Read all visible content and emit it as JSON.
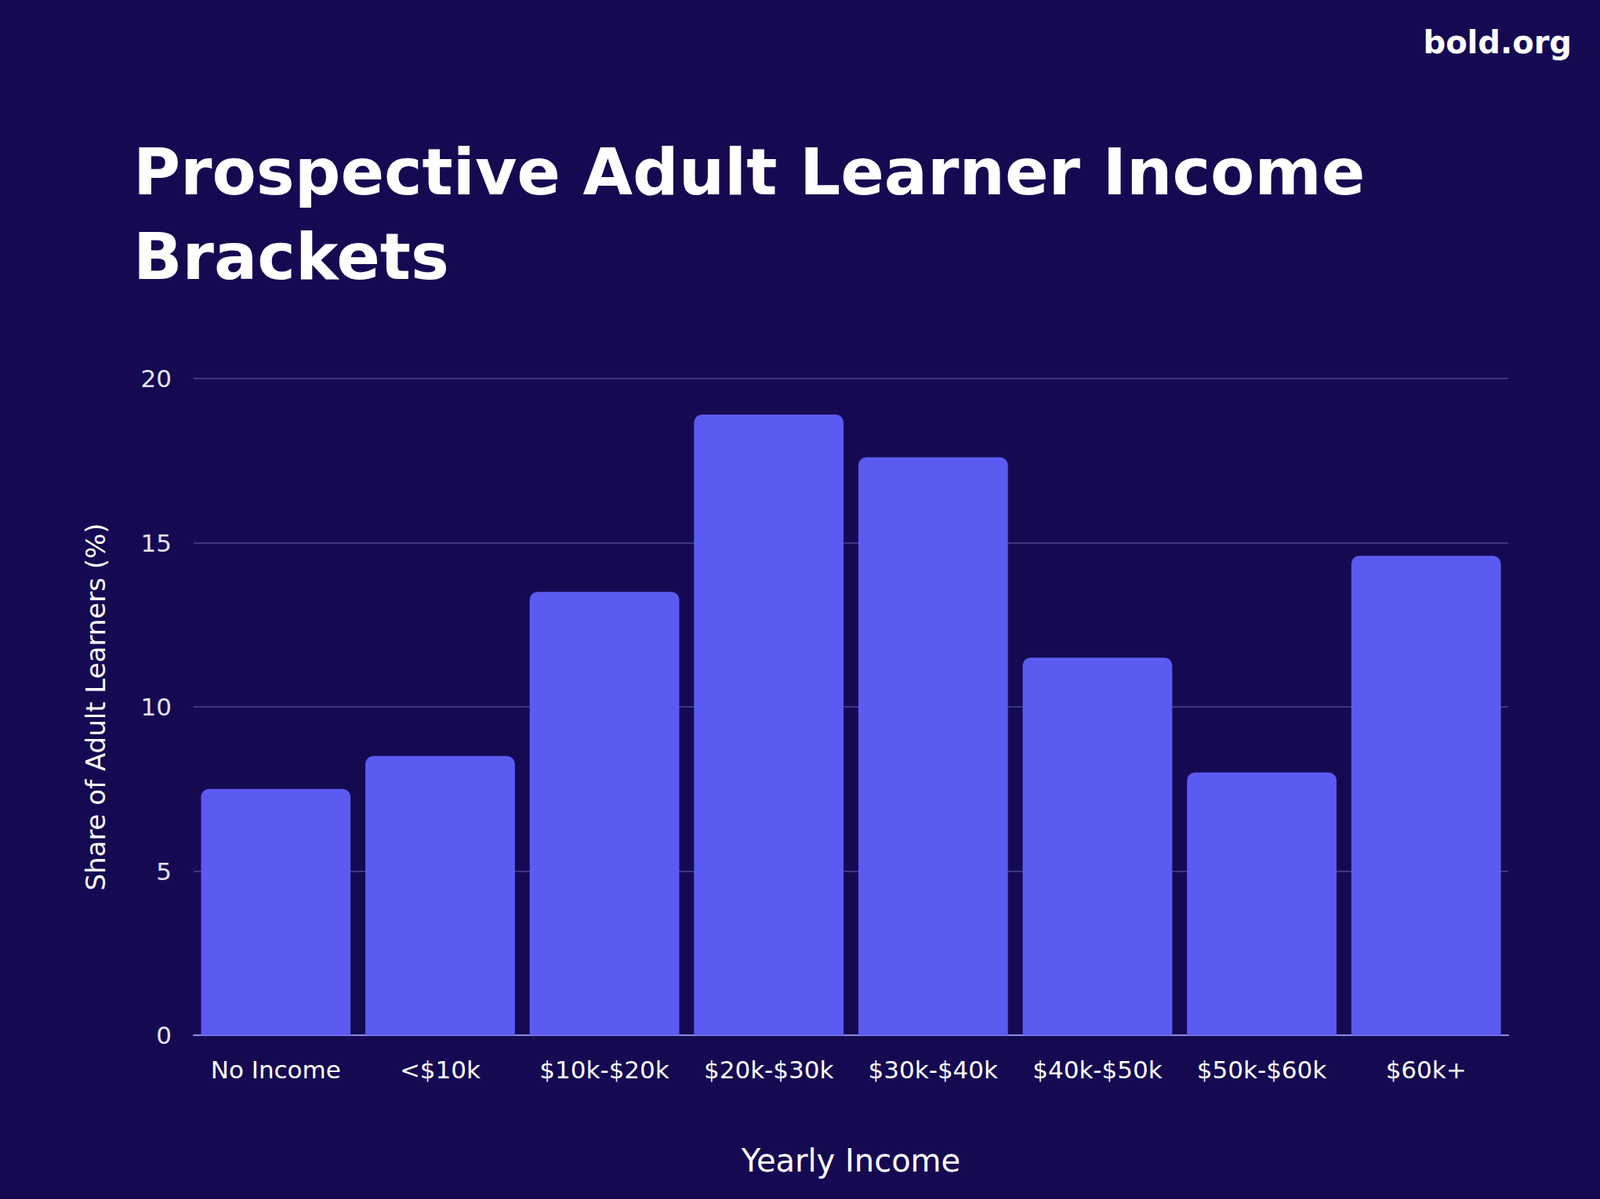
{
  "chart_data": {
    "type": "bar",
    "title": "Prospective Adult Learner Income Brackets",
    "source": "bold.org",
    "x_label": "Yearly Income",
    "y_label": "Share of Adult Learners (%)",
    "categories": [
      "No Income",
      "<$10k",
      "$10k-$20k",
      "$20k-$30k",
      "$30k-$40k",
      "$40k-$50k",
      "$50k-$60k",
      "$60k+"
    ],
    "values": [
      7.5,
      8.5,
      13.5,
      18.9,
      17.6,
      11.5,
      8.0,
      14.6
    ],
    "color": "#5b5bf2",
    "ylim": [
      0,
      20
    ],
    "yticks": [
      0,
      5,
      10,
      15,
      20
    ],
    "grid": true
  }
}
